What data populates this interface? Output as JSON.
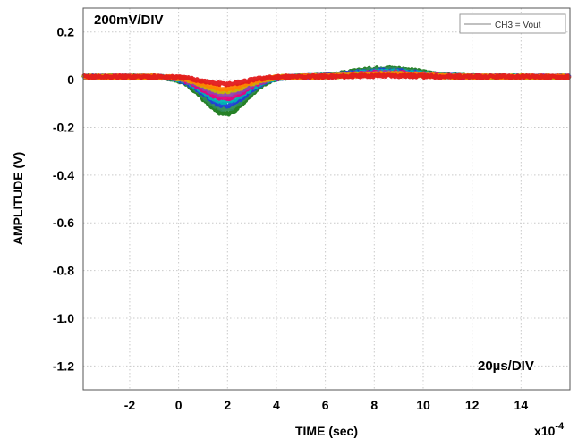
{
  "chart_data": {
    "type": "line",
    "xlabel": "TIME (sec)",
    "ylabel": "AMPLITUDE (V)",
    "x_exponent_label": "x10",
    "x_exponent_power": "-4",
    "xlim": [
      -3.9,
      16
    ],
    "ylim": [
      -1.3,
      0.3
    ],
    "x_ticks": [
      -2,
      0,
      2,
      4,
      6,
      8,
      10,
      12,
      14
    ],
    "x_tick_labels": [
      "-2",
      "0",
      "2",
      "4",
      "6",
      "8",
      "10",
      "12",
      "14"
    ],
    "y_ticks": [
      0.2,
      0,
      -0.2,
      -0.4,
      -0.6,
      -0.8,
      -1.0,
      -1.2
    ],
    "y_tick_labels": [
      "0.2",
      "0",
      "-0.2",
      "-0.4",
      "-0.6",
      "-0.8",
      "-1.0",
      "-1.2"
    ],
    "grid": true,
    "legend": {
      "position": "top-right",
      "entries": [
        "CH3 = Vout"
      ]
    },
    "annotations": {
      "vertical_scale": "200mV/DIV",
      "horizontal_scale": "20µs/DIV"
    },
    "series": [
      {
        "color": "#e31a1c",
        "min_value": -0.03,
        "overshoot": 0.005
      },
      {
        "color": "#ff7f00",
        "min_value": -0.05,
        "overshoot": 0.01
      },
      {
        "color": "#c8b400",
        "min_value": -0.06,
        "overshoot": 0.012
      },
      {
        "color": "#8e44ad",
        "min_value": -0.075,
        "overshoot": 0.015
      },
      {
        "color": "#e6007e",
        "min_value": -0.09,
        "overshoot": 0.018
      },
      {
        "color": "#00b3b3",
        "min_value": -0.105,
        "overshoot": 0.022
      },
      {
        "color": "#1f3fd6",
        "min_value": -0.12,
        "overshoot": 0.026
      },
      {
        "color": "#2e8b57",
        "min_value": -0.135,
        "overshoot": 0.03
      },
      {
        "color": "#1a7a1a",
        "min_value": -0.155,
        "overshoot": 0.036
      }
    ]
  }
}
